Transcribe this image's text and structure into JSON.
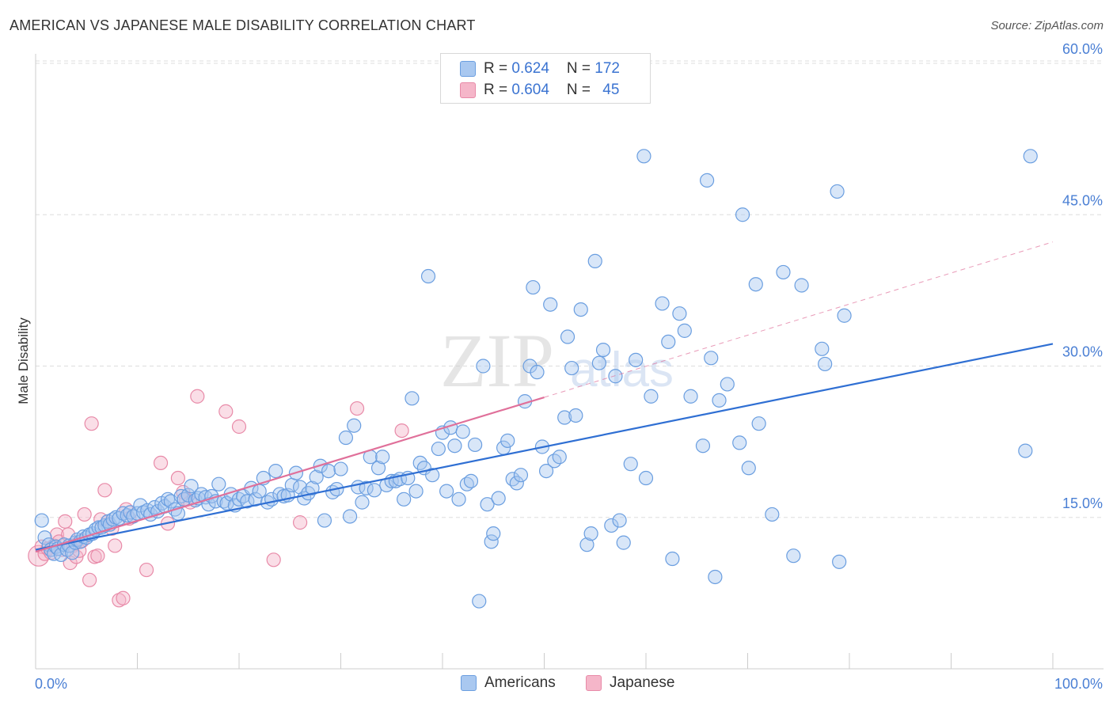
{
  "header": {
    "title": "AMERICAN VS JAPANESE MALE DISABILITY CORRELATION CHART",
    "source": "Source: ZipAtlas.com"
  },
  "legend": {
    "rows": [
      {
        "r_label": "R = ",
        "r_value": "0.624",
        "n_label": "N = ",
        "n_value": "172",
        "color": "#a9c8f0"
      },
      {
        "r_label": "R = ",
        "r_value": "0.604",
        "n_label": "N = ",
        "n_value": "45",
        "color": "#f5b6c9"
      }
    ]
  },
  "bottom_legend": {
    "americans": "Americans",
    "japanese": "Japanese"
  },
  "watermark": {
    "zip": "ZIP",
    "atlas": "atlas"
  },
  "colors": {
    "americans_fill": "#a9c8f0",
    "americans_stroke": "#6a9ee0",
    "americans_line": "#2f6fd3",
    "japanese_fill": "#f5b6c9",
    "japanese_stroke": "#e88aa8",
    "japanese_line": "#e0709a"
  },
  "chart_data": {
    "type": "scatter",
    "title": "AMERICAN VS JAPANESE MALE DISABILITY CORRELATION CHART",
    "xlabel": "",
    "ylabel": "Male Disability",
    "xlim": [
      0,
      100
    ],
    "ylim": [
      0,
      60
    ],
    "x_tick_labels": [
      "0.0%",
      "100.0%"
    ],
    "y_tick_labels": [
      {
        "value": 15,
        "label": "15.0%"
      },
      {
        "value": 30,
        "label": "30.0%"
      },
      {
        "value": 45,
        "label": "45.0%"
      },
      {
        "value": 60,
        "label": "60.0%"
      }
    ],
    "grid": true,
    "series": [
      {
        "name": "Americans",
        "trend": {
          "x0": 0,
          "y0": 11.8,
          "x1": 100,
          "y1": 32.2
        },
        "points": [
          [
            0.6,
            14.7
          ],
          [
            0.9,
            13
          ],
          [
            1.3,
            12.3
          ],
          [
            1.5,
            11.8
          ],
          [
            1.8,
            11.4
          ],
          [
            2,
            12.1
          ],
          [
            2.2,
            11.9
          ],
          [
            2.5,
            11.3
          ],
          [
            2.8,
            12.3
          ],
          [
            3.1,
            11.8
          ],
          [
            3.3,
            12.2
          ],
          [
            3.6,
            11.5
          ],
          [
            3.9,
            12.5
          ],
          [
            4.1,
            12.8
          ],
          [
            4.4,
            12.6
          ],
          [
            4.7,
            13.1
          ],
          [
            5,
            13
          ],
          [
            5.3,
            13.3
          ],
          [
            5.6,
            13.4
          ],
          [
            5.9,
            13.8
          ],
          [
            6.2,
            14
          ],
          [
            6.5,
            14
          ],
          [
            6.8,
            14.2
          ],
          [
            7.1,
            14.6
          ],
          [
            7.3,
            14.3
          ],
          [
            7.6,
            14.8
          ],
          [
            7.9,
            15
          ],
          [
            8.2,
            14.9
          ],
          [
            8.6,
            15.4
          ],
          [
            9,
            15.2
          ],
          [
            9.3,
            15.5
          ],
          [
            9.6,
            15.1
          ],
          [
            10,
            15.4
          ],
          [
            10.3,
            16.2
          ],
          [
            10.6,
            15.5
          ],
          [
            11,
            15.7
          ],
          [
            11.3,
            15.3
          ],
          [
            11.7,
            16
          ],
          [
            12,
            15.6
          ],
          [
            12.4,
            16.4
          ],
          [
            12.7,
            16.1
          ],
          [
            13,
            16.8
          ],
          [
            13.3,
            16.6
          ],
          [
            13.7,
            15.8
          ],
          [
            14,
            15.4
          ],
          [
            14.3,
            17.1
          ],
          [
            14.6,
            16.8
          ],
          [
            15,
            17.2
          ],
          [
            15.3,
            18.1
          ],
          [
            15.7,
            16.7
          ],
          [
            16,
            16.9
          ],
          [
            16.3,
            17.3
          ],
          [
            16.7,
            17
          ],
          [
            17,
            16.3
          ],
          [
            17.3,
            17.1
          ],
          [
            17.7,
            16.6
          ],
          [
            18,
            18.3
          ],
          [
            18.5,
            16.6
          ],
          [
            18.8,
            16.4
          ],
          [
            19.2,
            17.3
          ],
          [
            19.6,
            16.2
          ],
          [
            20,
            16.8
          ],
          [
            20.4,
            17.1
          ],
          [
            20.8,
            16.6
          ],
          [
            21.2,
            17.9
          ],
          [
            21.6,
            16.8
          ],
          [
            22,
            17.6
          ],
          [
            22.4,
            18.9
          ],
          [
            22.8,
            16.5
          ],
          [
            23.2,
            16.8
          ],
          [
            23.6,
            19.6
          ],
          [
            24,
            17.3
          ],
          [
            24.4,
            17.1
          ],
          [
            24.8,
            17.2
          ],
          [
            25.2,
            18.2
          ],
          [
            25.6,
            19.4
          ],
          [
            26,
            18
          ],
          [
            26.4,
            16.9
          ],
          [
            26.8,
            17.4
          ],
          [
            27.2,
            17.9
          ],
          [
            27.6,
            19
          ],
          [
            28,
            20.1
          ],
          [
            28.4,
            14.7
          ],
          [
            28.8,
            19.6
          ],
          [
            29.2,
            17.5
          ],
          [
            29.6,
            17.8
          ],
          [
            30,
            19.8
          ],
          [
            30.5,
            22.9
          ],
          [
            30.9,
            15.1
          ],
          [
            31.3,
            24.1
          ],
          [
            31.7,
            18
          ],
          [
            32.1,
            16.5
          ],
          [
            32.5,
            17.9
          ],
          [
            32.9,
            21
          ],
          [
            33.3,
            17.7
          ],
          [
            33.7,
            19.9
          ],
          [
            34.1,
            21
          ],
          [
            34.5,
            18.2
          ],
          [
            35,
            18.6
          ],
          [
            35.4,
            18.6
          ],
          [
            35.8,
            18.8
          ],
          [
            36.2,
            16.8
          ],
          [
            36.6,
            18.9
          ],
          [
            37,
            26.8
          ],
          [
            37.4,
            17.6
          ],
          [
            37.8,
            20.4
          ],
          [
            38.2,
            19.9
          ],
          [
            38.6,
            38.9
          ],
          [
            39,
            19.2
          ],
          [
            39.6,
            21.8
          ],
          [
            40,
            23.4
          ],
          [
            40.4,
            17.6
          ],
          [
            40.8,
            23.9
          ],
          [
            41.2,
            22.1
          ],
          [
            41.6,
            16.8
          ],
          [
            42,
            23.5
          ],
          [
            42.4,
            18.3
          ],
          [
            42.8,
            18.6
          ],
          [
            43.2,
            22.2
          ],
          [
            43.6,
            6.7
          ],
          [
            44,
            30
          ],
          [
            44.4,
            16.3
          ],
          [
            44.8,
            12.6
          ],
          [
            45,
            13.4
          ],
          [
            45.5,
            16.9
          ],
          [
            46,
            21.9
          ],
          [
            46.4,
            22.6
          ],
          [
            46.9,
            18.8
          ],
          [
            47.3,
            18.4
          ],
          [
            47.7,
            19.2
          ],
          [
            48.1,
            26.5
          ],
          [
            48.6,
            30
          ],
          [
            48.9,
            37.8
          ],
          [
            49.3,
            29.4
          ],
          [
            49.8,
            22
          ],
          [
            50.2,
            19.6
          ],
          [
            50.6,
            36.1
          ],
          [
            51,
            20.6
          ],
          [
            51.5,
            21
          ],
          [
            52,
            24.9
          ],
          [
            52.3,
            32.9
          ],
          [
            52.7,
            29.8
          ],
          [
            53.1,
            25.1
          ],
          [
            53.6,
            35.6
          ],
          [
            54.2,
            12.3
          ],
          [
            54.6,
            13.4
          ],
          [
            55,
            40.4
          ],
          [
            55.4,
            30.3
          ],
          [
            55.8,
            31.6
          ],
          [
            56.6,
            14.2
          ],
          [
            57,
            29
          ],
          [
            57.4,
            14.7
          ],
          [
            57.8,
            12.5
          ],
          [
            58.5,
            20.3
          ],
          [
            59,
            30.6
          ],
          [
            59.8,
            50.8
          ],
          [
            60,
            18.9
          ],
          [
            60.5,
            27
          ],
          [
            61.6,
            36.2
          ],
          [
            62.2,
            32.4
          ],
          [
            62.6,
            10.9
          ],
          [
            63.3,
            35.2
          ],
          [
            63.8,
            33.5
          ],
          [
            64.4,
            27
          ],
          [
            65.6,
            22.1
          ],
          [
            66,
            48.4
          ],
          [
            66.4,
            30.8
          ],
          [
            66.8,
            9.1
          ],
          [
            67.2,
            26.6
          ],
          [
            68,
            28.2
          ],
          [
            69.2,
            22.4
          ],
          [
            69.5,
            45
          ],
          [
            70.1,
            19.9
          ],
          [
            70.8,
            38.1
          ],
          [
            71.1,
            24.3
          ],
          [
            72.4,
            15.3
          ],
          [
            73.5,
            39.3
          ],
          [
            74.5,
            11.2
          ],
          [
            75.3,
            38
          ],
          [
            77.3,
            31.7
          ],
          [
            77.6,
            30.2
          ],
          [
            78.8,
            47.3
          ],
          [
            79,
            10.6
          ],
          [
            79.5,
            35
          ],
          [
            97.3,
            21.6
          ],
          [
            97.8,
            50.8
          ]
        ]
      },
      {
        "name": "Japanese",
        "trend": {
          "x0": 0,
          "y0": 11.6,
          "x1": 50,
          "y1": 26.9,
          "dashed_to": {
            "x": 100,
            "y": 42.3
          }
        },
        "points": [
          [
            0.3,
            11.2
          ],
          [
            0.6,
            12.1
          ],
          [
            0.9,
            11.4
          ],
          [
            1.2,
            11.9
          ],
          [
            1.5,
            11.5
          ],
          [
            1.8,
            12.2
          ],
          [
            2.1,
            13.3
          ],
          [
            2.3,
            12.6
          ],
          [
            2.6,
            11.8
          ],
          [
            2.9,
            14.6
          ],
          [
            3.2,
            13.3
          ],
          [
            3.4,
            10.5
          ],
          [
            3.7,
            12.2
          ],
          [
            4,
            11.1
          ],
          [
            4.3,
            11.7
          ],
          [
            4.6,
            12.7
          ],
          [
            4.8,
            15.3
          ],
          [
            5.3,
            8.8
          ],
          [
            5.5,
            24.3
          ],
          [
            5.8,
            11.1
          ],
          [
            6.1,
            11.2
          ],
          [
            6.4,
            14.8
          ],
          [
            6.8,
            17.7
          ],
          [
            7.1,
            14.6
          ],
          [
            7.5,
            13.9
          ],
          [
            7.8,
            12.2
          ],
          [
            8.2,
            6.8
          ],
          [
            8.6,
            7
          ],
          [
            8.9,
            15.8
          ],
          [
            9.2,
            14.9
          ],
          [
            10.9,
            9.8
          ],
          [
            12.3,
            20.4
          ],
          [
            13,
            14.4
          ],
          [
            14,
            18.9
          ],
          [
            14.5,
            17.5
          ],
          [
            14.8,
            16.8
          ],
          [
            15.2,
            16.5
          ],
          [
            15.9,
            27
          ],
          [
            18.7,
            25.5
          ],
          [
            20,
            24
          ],
          [
            23.4,
            10.8
          ],
          [
            26,
            14.5
          ],
          [
            31.6,
            25.8
          ],
          [
            36,
            23.6
          ]
        ]
      }
    ]
  }
}
